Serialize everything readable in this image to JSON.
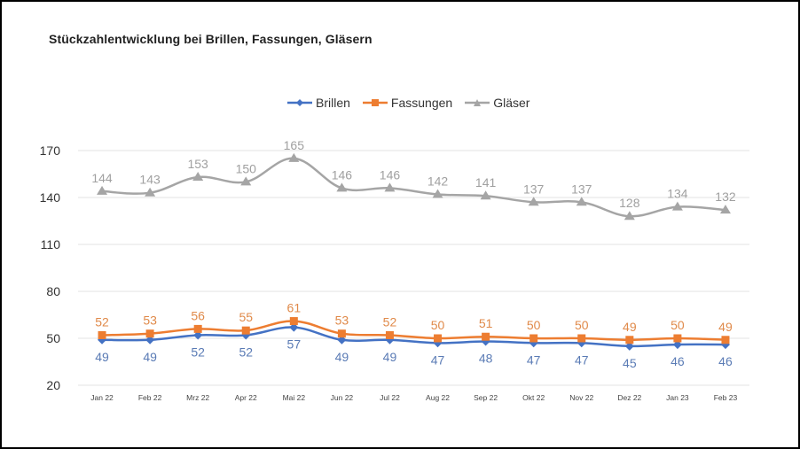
{
  "chart_data": {
    "type": "line",
    "title": "Stückzahlentwicklung bei Brillen, Fassungen, Gläsern",
    "xlabel": "",
    "ylabel": "",
    "categories": [
      "Jan 22",
      "Feb 22",
      "Mrz 22",
      "Apr 22",
      "Mai 22",
      "Jun 22",
      "Jul 22",
      "Aug 22",
      "Sep 22",
      "Okt 22",
      "Nov 22",
      "Dez 22",
      "Jan 23",
      "Feb 23"
    ],
    "yticks": [
      20,
      50,
      80,
      110,
      140,
      170
    ],
    "ylim": [
      20,
      170
    ],
    "grid": true,
    "legend_position": "top-center",
    "series": [
      {
        "name": "Brillen",
        "color": "#4472c4",
        "marker": "diamond",
        "label_position": "below",
        "values": [
          49,
          49,
          52,
          52,
          57,
          49,
          49,
          47,
          48,
          47,
          47,
          45,
          46,
          46
        ]
      },
      {
        "name": "Fassungen",
        "color": "#ed7d31",
        "marker": "square",
        "label_position": "above",
        "values": [
          52,
          53,
          56,
          55,
          61,
          53,
          52,
          50,
          51,
          50,
          50,
          49,
          50,
          49
        ]
      },
      {
        "name": "Gläser",
        "color": "#a5a5a5",
        "marker": "triangle",
        "label_position": "above",
        "values": [
          144,
          143,
          153,
          150,
          165,
          146,
          146,
          142,
          141,
          137,
          137,
          128,
          134,
          132
        ]
      }
    ]
  }
}
